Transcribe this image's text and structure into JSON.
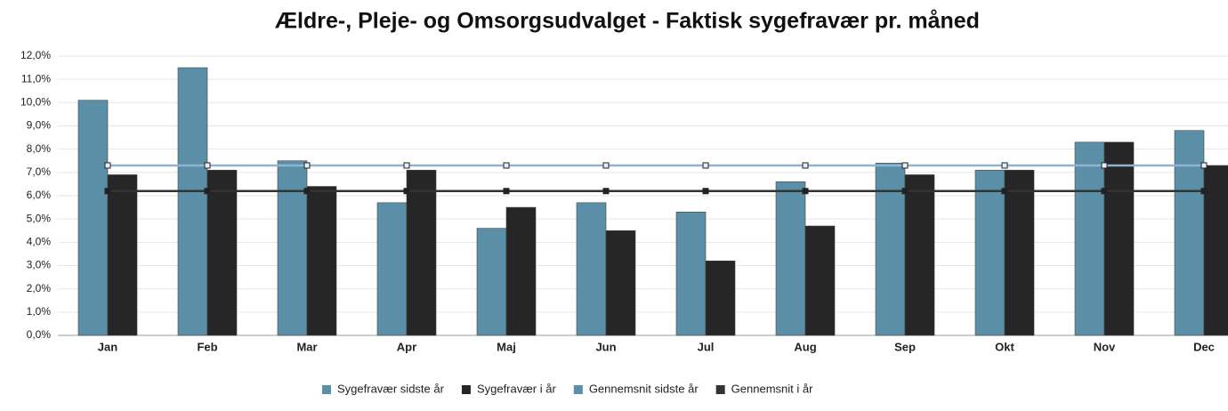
{
  "chart_data": {
    "type": "bar",
    "title": "Ældre-, Pleje- og Omsorgsudvalget - Faktisk sygefravær pr. måned",
    "categories": [
      "Jan",
      "Feb",
      "Mar",
      "Apr",
      "Maj",
      "Jun",
      "Jul",
      "Aug",
      "Sep",
      "Okt",
      "Nov",
      "Dec"
    ],
    "series": [
      {
        "name": "Sygefravær sidste år",
        "type": "bar",
        "color": "#5b8fa8",
        "values": [
          10.1,
          11.5,
          7.5,
          5.7,
          4.6,
          5.7,
          5.3,
          6.6,
          7.4,
          7.1,
          8.3,
          8.8
        ]
      },
      {
        "name": "Sygefravær i år",
        "type": "bar",
        "color": "#262626",
        "values": [
          6.9,
          7.1,
          6.4,
          7.1,
          5.5,
          4.5,
          3.2,
          4.7,
          6.9,
          7.1,
          8.3,
          7.3
        ]
      },
      {
        "name": "Gennemsnit sidste år",
        "type": "line",
        "color": "#8fb3d0",
        "values": [
          7.3,
          7.3,
          7.3,
          7.3,
          7.3,
          7.3,
          7.3,
          7.3,
          7.3,
          7.3,
          7.3,
          7.3
        ]
      },
      {
        "name": "Gennemsnit i år",
        "type": "line",
        "color": "#333333",
        "values": [
          6.2,
          6.2,
          6.2,
          6.2,
          6.2,
          6.2,
          6.2,
          6.2,
          6.2,
          6.2,
          6.2,
          6.2
        ]
      }
    ],
    "ylim": [
      0,
      12
    ],
    "yticks": [
      {
        "value": 0,
        "label": "0,0%"
      },
      {
        "value": 1,
        "label": "1,0%"
      },
      {
        "value": 2,
        "label": "2,0%"
      },
      {
        "value": 3,
        "label": "3,0%"
      },
      {
        "value": 4,
        "label": "4,0%"
      },
      {
        "value": 5,
        "label": "5,0%"
      },
      {
        "value": 6,
        "label": "6,0%"
      },
      {
        "value": 7,
        "label": "7,0%"
      },
      {
        "value": 8,
        "label": "8,0%"
      },
      {
        "value": 9,
        "label": "9,0%"
      },
      {
        "value": 10,
        "label": "10,0%"
      },
      {
        "value": 11,
        "label": "11,0%"
      },
      {
        "value": 12,
        "label": "12,0%"
      }
    ],
    "grid": true,
    "legend": "bottom"
  }
}
